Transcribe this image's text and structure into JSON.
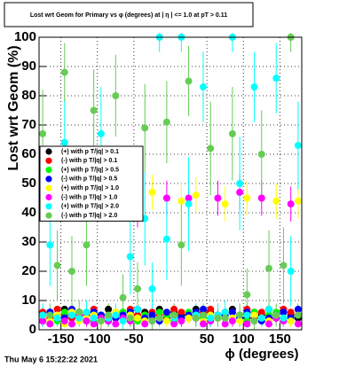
{
  "chart_data": {
    "type": "scatter",
    "title": "Lost wrt Geom for Primary vs φ (degrees) at | η | <= 1.0 at pT > 0.11",
    "y_label": "Lost wrt Geom (%)",
    "x_label": "ϕ (degrees)",
    "timestamp": "Thu May  6 15:22:22 2021",
    "xlim": [
      -180,
      180
    ],
    "ylim": [
      0,
      100
    ],
    "xticks": [
      -150,
      -100,
      -50,
      50,
      100,
      150
    ],
    "yticks": [
      0,
      10,
      20,
      30,
      40,
      50,
      60,
      70,
      80,
      90,
      100
    ],
    "grid": true,
    "x": [
      -175,
      -165,
      -155,
      -145,
      -135,
      -125,
      -115,
      -105,
      -95,
      -85,
      -75,
      -65,
      -55,
      -45,
      -35,
      -25,
      -15,
      -5,
      5,
      15,
      25,
      35,
      45,
      55,
      65,
      75,
      85,
      95,
      105,
      115,
      125,
      135,
      145,
      155,
      165,
      175
    ],
    "series": [
      {
        "name": "(+) with p T/|q| > 0.1",
        "color": "#000000",
        "values": [
          5,
          6,
          4,
          7,
          5,
          6,
          3,
          6,
          5,
          7,
          4,
          6,
          5,
          4,
          6,
          5,
          7,
          4,
          6,
          5,
          4,
          7,
          5,
          6,
          4,
          6,
          7,
          5,
          4,
          6,
          5,
          7,
          4,
          6,
          5,
          4
        ]
      },
      {
        "name": "(-) with p T/|q| > 0.1",
        "color": "#ff0000",
        "values": [
          6,
          4,
          7,
          5,
          4,
          6,
          5,
          7,
          4,
          5,
          6,
          4,
          7,
          5,
          4,
          6,
          5,
          4,
          7,
          6,
          5,
          4,
          6,
          7,
          5,
          4,
          6,
          5,
          7,
          4,
          6,
          5,
          4,
          7,
          6,
          5
        ]
      },
      {
        "name": "(+) with p T/|q| > 0.5",
        "color": "#00ff00",
        "values": [
          4,
          5,
          3,
          6,
          5,
          4,
          6,
          3,
          5,
          4,
          5,
          6,
          4,
          3,
          5,
          4,
          6,
          5,
          3,
          4,
          6,
          5,
          4,
          3,
          5,
          6,
          4,
          5,
          3,
          6,
          4,
          5,
          6,
          4,
          3,
          5
        ]
      },
      {
        "name": "(-) with p T/|q| > 0.5",
        "color": "#0000ff",
        "values": [
          3,
          6,
          5,
          4,
          7,
          5,
          4,
          6,
          5,
          3,
          4,
          5,
          6,
          7,
          4,
          5,
          3,
          6,
          5,
          4,
          5,
          6,
          7,
          4,
          5,
          5,
          6,
          4,
          6,
          5,
          3,
          4,
          5,
          6,
          4,
          7
        ]
      },
      {
        "name": "(+) with p T/|q| > 1.0",
        "color": "#ffff00",
        "values": [
          4,
          3,
          5,
          2,
          6,
          3,
          4,
          5,
          3,
          4,
          6,
          3,
          5,
          4,
          3,
          47,
          4,
          3,
          5,
          44,
          4,
          46,
          3,
          5,
          4,
          43,
          4,
          3,
          45,
          5,
          4,
          3,
          44,
          4,
          3,
          44
        ],
        "errors": [
          2,
          2,
          2,
          1,
          2,
          2,
          2,
          2,
          2,
          2,
          2,
          2,
          2,
          2,
          2,
          6,
          2,
          2,
          2,
          6,
          2,
          6,
          2,
          2,
          2,
          6,
          2,
          2,
          6,
          2,
          2,
          2,
          6,
          2,
          2,
          6
        ]
      },
      {
        "name": "(-) with p T/|q| > 1.0",
        "color": "#ff00ff",
        "values": [
          3,
          2,
          4,
          3,
          2,
          5,
          3,
          2,
          4,
          3,
          2,
          4,
          3,
          41,
          2,
          3,
          4,
          45,
          2,
          3,
          45,
          4,
          2,
          3,
          45,
          2,
          3,
          47,
          2,
          3,
          45,
          2,
          4,
          3,
          43,
          2
        ],
        "errors": [
          2,
          1,
          2,
          2,
          1,
          2,
          2,
          1,
          2,
          2,
          1,
          2,
          2,
          6,
          1,
          2,
          2,
          6,
          1,
          2,
          6,
          2,
          1,
          2,
          6,
          1,
          2,
          6,
          1,
          2,
          6,
          1,
          2,
          2,
          6,
          1
        ]
      },
      {
        "name": "(+) with p T/|q| > 2.0",
        "color": "#00ffff",
        "values": [
          5,
          29,
          4,
          64,
          5,
          4,
          6,
          4,
          67,
          4,
          5,
          3,
          25,
          7,
          38,
          14,
          100,
          31,
          4,
          100,
          43,
          5,
          83,
          4,
          5,
          6,
          100,
          50,
          5,
          83,
          4,
          7,
          86,
          4,
          20,
          63
        ],
        "errors": [
          4,
          14,
          3,
          15,
          4,
          3,
          4,
          3,
          16,
          3,
          4,
          3,
          13,
          4,
          16,
          9,
          5,
          14,
          3,
          5,
          16,
          4,
          12,
          3,
          4,
          4,
          5,
          16,
          4,
          12,
          3,
          4,
          12,
          3,
          12,
          15
        ]
      },
      {
        "name": "(-) with p T/|q| > 2.0",
        "color": "#66cc55",
        "values": [
          67,
          5,
          22,
          88,
          20,
          6,
          29,
          75,
          3,
          5,
          80,
          11,
          4,
          14,
          69,
          3,
          4,
          71,
          5,
          29,
          85,
          4,
          5,
          62,
          4,
          4,
          67,
          5,
          12,
          3,
          60,
          21,
          5,
          22,
          100,
          5
        ],
        "errors": [
          15,
          4,
          12,
          10,
          12,
          4,
          14,
          14,
          3,
          4,
          14,
          8,
          3,
          9,
          15,
          3,
          3,
          14,
          4,
          14,
          12,
          3,
          4,
          16,
          3,
          3,
          16,
          4,
          9,
          3,
          15,
          13,
          4,
          13,
          5,
          4
        ]
      }
    ]
  }
}
